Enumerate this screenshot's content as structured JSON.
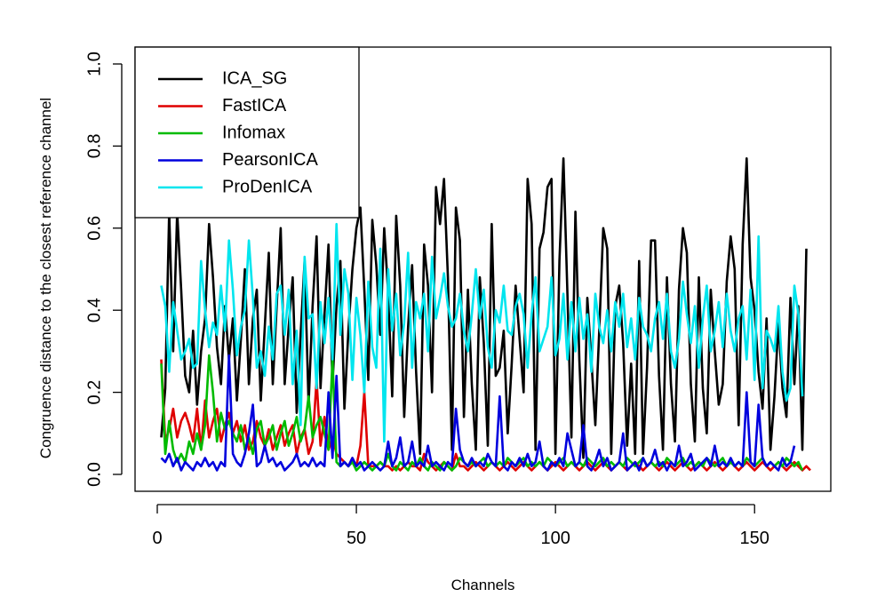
{
  "chart_data": {
    "type": "line",
    "title": "",
    "xlabel": "Channels",
    "ylabel": "Congruence distance to the closest reference channel",
    "xlim": [
      0,
      165
    ],
    "ylim": [
      0,
      1.0
    ],
    "xticks": [
      0,
      50,
      100,
      150
    ],
    "yticks": [
      0.0,
      0.2,
      0.4,
      0.6,
      0.8,
      1.0
    ],
    "xtick_labels": [
      "0",
      "50",
      "100",
      "150"
    ],
    "ytick_labels": [
      "0.0",
      "0.2",
      "0.4",
      "0.6",
      "0.8",
      "1.0"
    ],
    "grid": false,
    "legend_position": "top-left",
    "x_start": 1,
    "series": [
      {
        "name": "ICA_SG",
        "color": "#000000",
        "values": [
          0.09,
          0.21,
          0.64,
          0.3,
          0.64,
          0.45,
          0.24,
          0.2,
          0.35,
          0.17,
          0.3,
          0.38,
          0.61,
          0.48,
          0.31,
          0.22,
          0.41,
          0.28,
          0.38,
          0.18,
          0.33,
          0.5,
          0.22,
          0.38,
          0.45,
          0.18,
          0.36,
          0.54,
          0.22,
          0.41,
          0.6,
          0.22,
          0.36,
          0.48,
          0.15,
          0.34,
          0.52,
          0.17,
          0.41,
          0.58,
          0.21,
          0.39,
          0.56,
          0.22,
          0.41,
          0.52,
          0.16,
          0.35,
          0.5,
          0.6,
          0.65,
          0.45,
          0.23,
          0.62,
          0.51,
          0.34,
          0.6,
          0.44,
          0.19,
          0.63,
          0.46,
          0.14,
          0.36,
          0.51,
          0.25,
          0.05,
          0.56,
          0.46,
          0.2,
          0.7,
          0.61,
          0.72,
          0.48,
          0.06,
          0.65,
          0.57,
          0.14,
          0.45,
          0.22,
          0.06,
          0.48,
          0.32,
          0.07,
          0.61,
          0.24,
          0.26,
          0.35,
          0.1,
          0.27,
          0.46,
          0.33,
          0.2,
          0.72,
          0.61,
          0.06,
          0.55,
          0.59,
          0.7,
          0.72,
          0.05,
          0.52,
          0.77,
          0.44,
          0.09,
          0.64,
          0.28,
          0.04,
          0.43,
          0.28,
          0.12,
          0.35,
          0.6,
          0.55,
          0.05,
          0.41,
          0.46,
          0.32,
          0.07,
          0.27,
          0.05,
          0.52,
          0.05,
          0.26,
          0.57,
          0.57,
          0.24,
          0.06,
          0.48,
          0.22,
          0.08,
          0.45,
          0.6,
          0.54,
          0.22,
          0.08,
          0.48,
          0.21,
          0.1,
          0.45,
          0.3,
          0.17,
          0.22,
          0.47,
          0.58,
          0.5,
          0.12,
          0.56,
          0.77,
          0.48,
          0.4,
          0.25,
          0.16,
          0.38,
          0.06,
          0.19,
          0.37,
          0.21,
          0.14,
          0.43,
          0.22,
          0.41,
          0.06,
          0.55
        ]
      },
      {
        "name": "FastICA",
        "color": "#DF0000",
        "values": [
          0.28,
          0.08,
          0.11,
          0.16,
          0.09,
          0.13,
          0.15,
          0.12,
          0.08,
          0.16,
          0.06,
          0.18,
          0.09,
          0.13,
          0.16,
          0.08,
          0.12,
          0.15,
          0.1,
          0.13,
          0.08,
          0.12,
          0.06,
          0.08,
          0.13,
          0.09,
          0.07,
          0.11,
          0.06,
          0.09,
          0.12,
          0.07,
          0.1,
          0.12,
          0.05,
          0.09,
          0.11,
          0.05,
          0.08,
          0.23,
          0.07,
          0.14,
          0.06,
          0.09,
          0.05,
          0.04,
          0.03,
          0.02,
          0.04,
          0.02,
          0.07,
          0.2,
          0.02,
          0.02,
          0.02,
          0.03,
          0.02,
          0.02,
          0.01,
          0.02,
          0.01,
          0.02,
          0.03,
          0.02,
          0.02,
          0.01,
          0.05,
          0.03,
          0.02,
          0.01,
          0.02,
          0.03,
          0.02,
          0.01,
          0.05,
          0.02,
          0.02,
          0.01,
          0.02,
          0.03,
          0.02,
          0.01,
          0.02,
          0.03,
          0.02,
          0.01,
          0.02,
          0.03,
          0.02,
          0.01,
          0.02,
          0.03,
          0.02,
          0.01,
          0.02,
          0.03,
          0.02,
          0.01,
          0.02,
          0.03,
          0.02,
          0.01,
          0.02,
          0.03,
          0.02,
          0.01,
          0.02,
          0.03,
          0.02,
          0.01,
          0.02,
          0.03,
          0.02,
          0.01,
          0.02,
          0.03,
          0.02,
          0.01,
          0.02,
          0.03,
          0.02,
          0.01,
          0.02,
          0.03,
          0.02,
          0.01,
          0.02,
          0.03,
          0.02,
          0.01,
          0.02,
          0.03,
          0.02,
          0.01,
          0.02,
          0.03,
          0.02,
          0.01,
          0.02,
          0.03,
          0.02,
          0.01,
          0.02,
          0.03,
          0.02,
          0.01,
          0.02,
          0.03,
          0.02,
          0.01,
          0.02,
          0.03,
          0.02,
          0.01,
          0.02,
          0.03,
          0.02,
          0.01,
          0.02,
          0.03,
          0.02,
          0.01,
          0.02,
          0.01
        ]
      },
      {
        "name": "Infomax",
        "color": "#00BB00",
        "values": [
          0.27,
          0.05,
          0.13,
          0.06,
          0.03,
          0.05,
          0.03,
          0.08,
          0.05,
          0.1,
          0.06,
          0.12,
          0.29,
          0.2,
          0.08,
          0.15,
          0.11,
          0.13,
          0.1,
          0.08,
          0.12,
          0.06,
          0.09,
          0.05,
          0.11,
          0.13,
          0.07,
          0.09,
          0.12,
          0.06,
          0.1,
          0.13,
          0.07,
          0.1,
          0.14,
          0.08,
          0.11,
          0.19,
          0.09,
          0.12,
          0.14,
          0.1,
          0.06,
          0.28,
          0.03,
          0.02,
          0.03,
          0.02,
          0.03,
          0.01,
          0.02,
          0.03,
          0.02,
          0.01,
          0.02,
          0.03,
          0.02,
          0.05,
          0.02,
          0.01,
          0.03,
          0.02,
          0.01,
          0.03,
          0.02,
          0.04,
          0.02,
          0.01,
          0.03,
          0.02,
          0.01,
          0.03,
          0.02,
          0.01,
          0.02,
          0.04,
          0.03,
          0.02,
          0.03,
          0.02,
          0.03,
          0.04,
          0.02,
          0.03,
          0.02,
          0.03,
          0.02,
          0.04,
          0.03,
          0.02,
          0.03,
          0.04,
          0.02,
          0.03,
          0.02,
          0.03,
          0.02,
          0.04,
          0.03,
          0.02,
          0.03,
          0.04,
          0.02,
          0.03,
          0.02,
          0.03,
          0.02,
          0.04,
          0.03,
          0.02,
          0.03,
          0.04,
          0.02,
          0.03,
          0.02,
          0.03,
          0.02,
          0.04,
          0.03,
          0.02,
          0.03,
          0.04,
          0.02,
          0.03,
          0.02,
          0.03,
          0.02,
          0.04,
          0.03,
          0.02,
          0.03,
          0.04,
          0.02,
          0.03,
          0.02,
          0.03,
          0.02,
          0.04,
          0.03,
          0.02,
          0.03,
          0.04,
          0.02,
          0.03,
          0.02,
          0.03,
          0.02,
          0.04,
          0.03,
          0.02,
          0.03,
          0.04,
          0.02,
          0.03,
          0.02,
          0.03,
          0.02,
          0.04,
          0.03,
          0.02,
          0.03,
          0.01
        ]
      },
      {
        "name": "PearsonICA",
        "color": "#0000DD",
        "values": [
          0.04,
          0.03,
          0.05,
          0.02,
          0.04,
          0.01,
          0.03,
          0.02,
          0.01,
          0.03,
          0.02,
          0.04,
          0.02,
          0.03,
          0.01,
          0.03,
          0.02,
          0.29,
          0.05,
          0.03,
          0.02,
          0.05,
          0.1,
          0.17,
          0.02,
          0.03,
          0.07,
          0.03,
          0.04,
          0.02,
          0.03,
          0.01,
          0.02,
          0.03,
          0.05,
          0.02,
          0.03,
          0.02,
          0.04,
          0.02,
          0.03,
          0.02,
          0.2,
          0.04,
          0.24,
          0.02,
          0.03,
          0.02,
          0.04,
          0.02,
          0.03,
          0.01,
          0.02,
          0.03,
          0.02,
          0.01,
          0.02,
          0.08,
          0.02,
          0.04,
          0.09,
          0.02,
          0.03,
          0.08,
          0.02,
          0.03,
          0.02,
          0.07,
          0.02,
          0.03,
          0.02,
          0.01,
          0.03,
          0.02,
          0.16,
          0.06,
          0.03,
          0.02,
          0.04,
          0.02,
          0.03,
          0.02,
          0.05,
          0.03,
          0.02,
          0.19,
          0.02,
          0.01,
          0.03,
          0.02,
          0.04,
          0.02,
          0.05,
          0.02,
          0.03,
          0.08,
          0.02,
          0.01,
          0.03,
          0.02,
          0.04,
          0.02,
          0.1,
          0.06,
          0.02,
          0.03,
          0.12,
          0.02,
          0.01,
          0.03,
          0.06,
          0.02,
          0.04,
          0.01,
          0.02,
          0.03,
          0.1,
          0.01,
          0.02,
          0.03,
          0.01,
          0.04,
          0.02,
          0.03,
          0.06,
          0.02,
          0.03,
          0.01,
          0.03,
          0.02,
          0.07,
          0.02,
          0.03,
          0.05,
          0.01,
          0.02,
          0.03,
          0.04,
          0.02,
          0.07,
          0.02,
          0.03,
          0.02,
          0.04,
          0.02,
          0.03,
          0.02,
          0.2,
          0.03,
          0.02,
          0.17,
          0.04,
          0.02,
          0.03,
          0.02,
          0.01,
          0.04,
          0.02,
          0.03,
          0.07
        ]
      },
      {
        "name": "ProDenICA",
        "color": "#00E5EE",
        "values": [
          0.46,
          0.41,
          0.25,
          0.42,
          0.35,
          0.28,
          0.3,
          0.33,
          0.26,
          0.27,
          0.52,
          0.4,
          0.31,
          0.37,
          0.34,
          0.46,
          0.35,
          0.57,
          0.45,
          0.29,
          0.36,
          0.4,
          0.57,
          0.43,
          0.26,
          0.3,
          0.24,
          0.36,
          0.28,
          0.44,
          0.46,
          0.34,
          0.45,
          0.22,
          0.35,
          0.12,
          0.53,
          0.38,
          0.39,
          0.21,
          0.42,
          0.32,
          0.43,
          0.28,
          0.61,
          0.34,
          0.5,
          0.44,
          0.23,
          0.43,
          0.34,
          0.2,
          0.47,
          0.31,
          0.26,
          0.55,
          0.08,
          0.5,
          0.35,
          0.44,
          0.29,
          0.37,
          0.54,
          0.26,
          0.42,
          0.38,
          0.44,
          0.3,
          0.53,
          0.38,
          0.43,
          0.49,
          0.41,
          0.36,
          0.38,
          0.44,
          0.35,
          0.3,
          0.39,
          0.5,
          0.38,
          0.45,
          0.31,
          0.26,
          0.4,
          0.37,
          0.46,
          0.35,
          0.34,
          0.41,
          0.44,
          0.39,
          0.26,
          0.39,
          0.48,
          0.3,
          0.33,
          0.36,
          0.48,
          0.29,
          0.33,
          0.44,
          0.28,
          0.42,
          0.3,
          0.43,
          0.33,
          0.39,
          0.25,
          0.44,
          0.36,
          0.32,
          0.4,
          0.3,
          0.42,
          0.36,
          0.44,
          0.31,
          0.38,
          0.28,
          0.43,
          0.36,
          0.34,
          0.3,
          0.38,
          0.42,
          0.33,
          0.44,
          0.3,
          0.26,
          0.33,
          0.47,
          0.39,
          0.32,
          0.41,
          0.26,
          0.38,
          0.46,
          0.3,
          0.35,
          0.42,
          0.31,
          0.44,
          0.35,
          0.3,
          0.38,
          0.41,
          0.28,
          0.45,
          0.23,
          0.58,
          0.21,
          0.35,
          0.33,
          0.3,
          0.41,
          0.25,
          0.18,
          0.21,
          0.46,
          0.39,
          0.19
        ]
      }
    ]
  }
}
